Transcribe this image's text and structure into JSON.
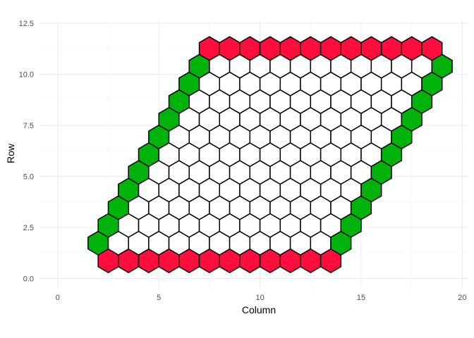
{
  "chart_data": {
    "type": "hex-grid",
    "xlabel": "Column",
    "ylabel": "Row",
    "xlim": [
      -0.9,
      20.3
    ],
    "ylim": [
      -0.5,
      12.6
    ],
    "x_ticks": [
      0,
      5,
      10,
      15,
      20
    ],
    "x_tick_labels": [
      "0",
      "5",
      "10",
      "15",
      "20"
    ],
    "y_ticks": [
      0,
      2.5,
      5,
      7.5,
      10,
      12.5
    ],
    "y_tick_labels": [
      "0.0",
      "2.5",
      "5.0",
      "7.5",
      "10.0",
      "12.5"
    ],
    "grid": true,
    "board_size": 12,
    "hex_row_spacing": 0.866,
    "colors": {
      "red_edge": "#ff0d3d",
      "green_edge": "#00b30a",
      "interior": "#ffffff",
      "outline": "#000000"
    },
    "rows": [
      {
        "row": 0.866,
        "x_start": 2.5,
        "count": 12,
        "fill": "red_edge"
      },
      {
        "row": 1.732,
        "x_start": 2,
        "count": 1,
        "fill": "green_edge"
      },
      {
        "row": 1.732,
        "x_start": 3,
        "count": 11,
        "fill": "interior"
      },
      {
        "row": 1.732,
        "x_start": 14,
        "count": 1,
        "fill": "green_edge"
      },
      {
        "row": 2.598,
        "x_start": 2.5,
        "count": 1,
        "fill": "green_edge"
      },
      {
        "row": 2.598,
        "x_start": 3.5,
        "count": 11,
        "fill": "interior"
      },
      {
        "row": 2.598,
        "x_start": 14.5,
        "count": 1,
        "fill": "green_edge"
      },
      {
        "row": 3.464,
        "x_start": 3,
        "count": 1,
        "fill": "green_edge"
      },
      {
        "row": 3.464,
        "x_start": 4,
        "count": 11,
        "fill": "interior"
      },
      {
        "row": 3.464,
        "x_start": 15,
        "count": 1,
        "fill": "green_edge"
      },
      {
        "row": 4.33,
        "x_start": 3.5,
        "count": 1,
        "fill": "green_edge"
      },
      {
        "row": 4.33,
        "x_start": 4.5,
        "count": 11,
        "fill": "interior"
      },
      {
        "row": 4.33,
        "x_start": 15.5,
        "count": 1,
        "fill": "green_edge"
      },
      {
        "row": 5.196,
        "x_start": 4,
        "count": 1,
        "fill": "green_edge"
      },
      {
        "row": 5.196,
        "x_start": 5,
        "count": 11,
        "fill": "interior"
      },
      {
        "row": 5.196,
        "x_start": 16,
        "count": 1,
        "fill": "green_edge"
      },
      {
        "row": 6.062,
        "x_start": 4.5,
        "count": 1,
        "fill": "green_edge"
      },
      {
        "row": 6.062,
        "x_start": 5.5,
        "count": 11,
        "fill": "interior"
      },
      {
        "row": 6.062,
        "x_start": 16.5,
        "count": 1,
        "fill": "green_edge"
      },
      {
        "row": 6.928,
        "x_start": 5,
        "count": 1,
        "fill": "green_edge"
      },
      {
        "row": 6.928,
        "x_start": 6,
        "count": 11,
        "fill": "interior"
      },
      {
        "row": 6.928,
        "x_start": 17,
        "count": 1,
        "fill": "green_edge"
      },
      {
        "row": 7.794,
        "x_start": 5.5,
        "count": 1,
        "fill": "green_edge"
      },
      {
        "row": 7.794,
        "x_start": 6.5,
        "count": 11,
        "fill": "interior"
      },
      {
        "row": 7.794,
        "x_start": 17.5,
        "count": 1,
        "fill": "green_edge"
      },
      {
        "row": 8.66,
        "x_start": 6,
        "count": 1,
        "fill": "green_edge"
      },
      {
        "row": 8.66,
        "x_start": 7,
        "count": 11,
        "fill": "interior"
      },
      {
        "row": 8.66,
        "x_start": 18,
        "count": 1,
        "fill": "green_edge"
      },
      {
        "row": 9.526,
        "x_start": 6.5,
        "count": 1,
        "fill": "green_edge"
      },
      {
        "row": 9.526,
        "x_start": 7.5,
        "count": 11,
        "fill": "interior"
      },
      {
        "row": 9.526,
        "x_start": 18.5,
        "count": 1,
        "fill": "green_edge"
      },
      {
        "row": 10.392,
        "x_start": 7,
        "count": 1,
        "fill": "green_edge"
      },
      {
        "row": 10.392,
        "x_start": 8,
        "count": 11,
        "fill": "interior"
      },
      {
        "row": 10.392,
        "x_start": 19,
        "count": 1,
        "fill": "green_edge"
      },
      {
        "row": 11.258,
        "x_start": 7.5,
        "count": 12,
        "fill": "red_edge"
      }
    ]
  }
}
